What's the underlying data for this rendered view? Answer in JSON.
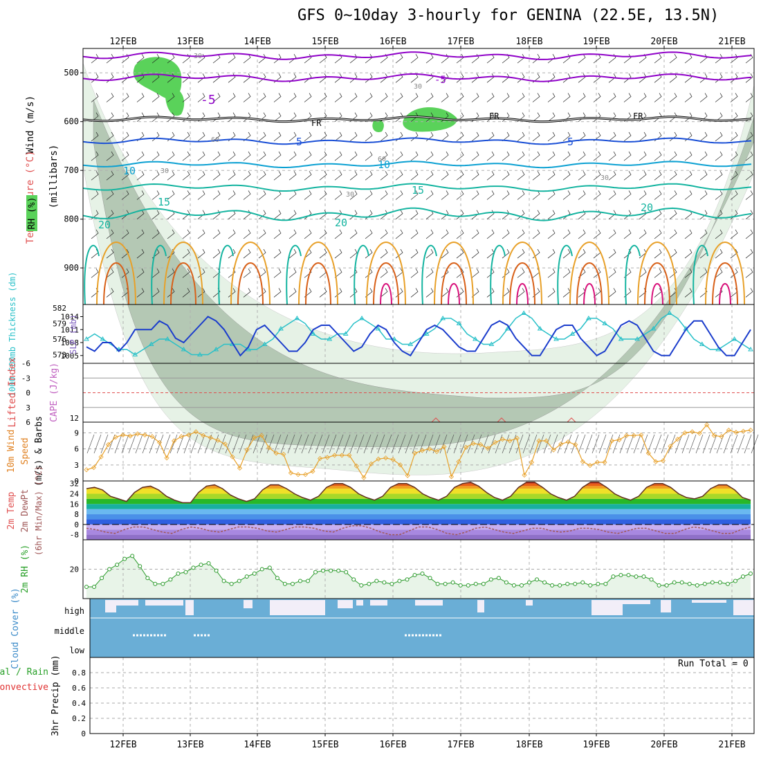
{
  "title": "GFS 0~10day 3-hourly for GENINA (22.5E, 13.5N)",
  "date_labels": [
    "12FEB",
    "13FEB",
    "14FEB",
    "15FEB",
    "16FEB",
    "17FEB",
    "18FEB",
    "19FEB",
    "20FEB",
    "21FEB"
  ],
  "run_total_label": "Run Total = 0",
  "colors": {
    "temp_purple": "#8f00c8",
    "temp_blue": "#1a4fd6",
    "temp_cyan": "#0aa0d2",
    "temp_teal": "#14b4a0",
    "temp_orange": "#e8a028",
    "temp_dark_orange": "#d86018",
    "temp_magenta": "#d8107a",
    "rh_light": "#e6f2e6",
    "rh_mid": "#b4c8b4",
    "rh_dark": "#2f9a2f",
    "rh_bright": "#5ad25a",
    "slp_blue": "#1a3ccc",
    "thickness_cyan": "#28c0c8",
    "wind_orange": "#e8a028",
    "cloud_blue": "#6aaed6",
    "cloud_clear": "#f2eef8",
    "rh2m_green": "#2a9a2a",
    "rh2m_fill": "#e8f4e8",
    "axis_grid": "#b0b0b0"
  },
  "chart_data": [
    {
      "type": "contour",
      "panel": "upper_air",
      "ylabel_wind": "Wind (m/s)",
      "ylabel_temp": "Temperature (°C)",
      "ylabel_rh": "RH (%)",
      "ylabel_units": "(millibars)",
      "y_ticks": [
        "500",
        "600",
        "700",
        "800",
        "900"
      ],
      "ylim": [
        450,
        975
      ],
      "contour_labels": [
        {
          "text": "-5",
          "value": -5
        },
        {
          "text": "5",
          "value": 5
        },
        {
          "text": "10",
          "value": 10
        },
        {
          "text": "15",
          "value": 15
        },
        {
          "text": "20",
          "value": 20
        },
        {
          "text": "FR",
          "value": 0
        },
        {
          "text": "30",
          "value": 30
        },
        {
          "text": "60",
          "value": 60
        }
      ],
      "isotherms_mb": {
        "minus5": 510,
        "freezing": 595,
        "plus5": 640,
        "plus10": 688,
        "plus15": 735,
        "plus20": 790
      }
    },
    {
      "type": "line",
      "panel": "slp_thickness",
      "ylabel_left": "1000-500mb Thickness (dm)",
      "ylabel_right": "SLP (mb)",
      "left_ticks": [
        "582",
        "579",
        "576",
        "573"
      ],
      "right_ticks": [
        "1014",
        "1011",
        "1008",
        "1005"
      ],
      "ylim_slp": [
        1004,
        1016
      ],
      "ylim_thickness": [
        572,
        582
      ],
      "series": [
        {
          "name": "SLP (mb)",
          "values": [
            1007,
            1006,
            1008,
            1008,
            1006,
            1008,
            1011,
            1011,
            1011,
            1013,
            1012,
            1009,
            1008,
            1010,
            1012,
            1014,
            1013,
            1011,
            1008,
            1005,
            1007,
            1011,
            1012,
            1010,
            1008,
            1006,
            1006,
            1008,
            1011,
            1012,
            1012,
            1010,
            1008,
            1006,
            1007,
            1010,
            1012,
            1011,
            1008,
            1006,
            1005,
            1008,
            1011,
            1012,
            1011,
            1009,
            1007,
            1006,
            1006,
            1009,
            1012,
            1013,
            1012,
            1009,
            1007,
            1005,
            1005,
            1008,
            1011,
            1012,
            1012,
            1009,
            1007,
            1005,
            1006,
            1009,
            1012,
            1013,
            1012,
            1009,
            1006,
            1005,
            1005,
            1008,
            1011,
            1013,
            1013,
            1010,
            1007,
            1005,
            1005,
            1008,
            1011
          ]
        },
        {
          "name": "1000-500mb Thickness (dm)",
          "values": [
            576,
            577,
            576,
            575,
            574,
            574,
            573,
            574,
            575,
            576,
            576,
            575,
            574,
            573,
            573,
            573,
            574,
            575,
            575,
            575,
            574,
            574,
            575,
            576,
            578,
            579,
            580,
            579,
            577,
            576,
            576,
            577,
            577,
            579,
            580,
            579,
            578,
            576,
            576,
            575,
            575,
            576,
            577,
            578,
            580,
            580,
            579,
            577,
            576,
            575,
            575,
            576,
            578,
            580,
            581,
            580,
            578,
            577,
            576,
            576,
            577,
            578,
            580,
            580,
            579,
            578,
            576,
            576,
            576,
            577,
            578,
            580,
            581,
            580,
            578,
            576,
            575,
            574,
            574,
            575,
            576,
            575,
            574
          ]
        }
      ]
    },
    {
      "type": "line",
      "panel": "stability",
      "ylabel_left": "Lifted Index",
      "ylabel_right": "CAPE (J/kg)",
      "left_ticks": [
        "-6",
        "-3",
        "0",
        "3",
        "6"
      ],
      "cape_tick": "12",
      "ylim": [
        -6,
        6
      ],
      "series": [
        {
          "name": "Lifted Index",
          "values": []
        },
        {
          "name": "CAPE (J/kg)",
          "values": []
        }
      ]
    },
    {
      "type": "line",
      "panel": "wind10m",
      "ylabel": "10m Wind Speed (m/s) & Barbs",
      "ylabel_lines": [
        "10m Wind",
        "Speed",
        "(m/s) & Barbs"
      ],
      "y_ticks": [
        "9",
        "6",
        "3",
        "0"
      ],
      "ylim": [
        0,
        11
      ],
      "series": [
        {
          "name": "10m Wind Speed",
          "values": [
            2.1,
            2.5,
            4.5,
            6.8,
            8.2,
            8.6,
            8.4,
            8.8,
            8.6,
            8.3,
            7.2,
            4.3,
            7.5,
            8.3,
            8.6,
            9.2,
            8.5,
            8.1,
            7.6,
            6.9,
            4.5,
            2.4,
            5.8,
            8.1,
            8.5,
            6.2,
            5.2,
            5.0,
            1.5,
            1.2,
            1.2,
            1.8,
            4.2,
            4.4,
            4.8,
            4.8,
            4.8,
            2.8,
            0.6,
            3.2,
            4.1,
            4.3,
            4.0,
            3.0,
            1.0,
            5.2,
            5.7,
            6.0,
            5.5,
            6.4,
            0.8,
            3.6,
            6.3,
            7.0,
            6.8,
            6.1,
            7.2,
            7.8,
            7.5,
            8.0,
            1.1,
            3.5,
            7.5,
            7.5,
            5.8,
            6.9,
            7.3,
            6.8,
            3.6,
            2.9,
            3.5,
            3.5,
            7.5,
            7.7,
            8.5,
            8.5,
            8.6,
            5.2,
            3.6,
            3.8,
            6.5,
            7.8,
            9.0,
            9.2,
            8.9,
            10.5,
            8.5,
            8.3,
            9.5,
            9.1,
            9.3,
            9.5
          ]
        }
      ]
    },
    {
      "type": "area",
      "panel": "temperature2m",
      "ylabel_lines": [
        "2m Temp",
        "2m DewPt",
        "(6hr Min/Max) (°C)"
      ],
      "y_ticks": [
        "32",
        "24",
        "16",
        "8",
        "0",
        "-8"
      ],
      "ylim": [
        -12,
        34
      ],
      "series": [
        {
          "name": "2m Temp",
          "values": [
            28,
            29,
            27,
            22,
            20,
            18,
            25,
            29,
            30,
            27,
            22,
            19,
            17,
            17,
            25,
            30,
            31,
            28,
            23,
            20,
            18,
            20,
            27,
            31,
            31,
            28,
            24,
            21,
            19,
            22,
            29,
            32,
            32,
            29,
            24,
            21,
            19,
            22,
            29,
            32,
            32,
            29,
            24,
            21,
            19,
            22,
            29,
            32,
            33,
            30,
            25,
            21,
            19,
            22,
            29,
            33,
            33,
            29,
            24,
            21,
            19,
            22,
            29,
            33,
            33,
            29,
            24,
            21,
            19,
            22,
            29,
            32,
            32,
            29,
            24,
            21,
            20,
            22,
            28,
            31,
            31,
            27,
            21,
            19
          ]
        },
        {
          "name": "2m DewPt",
          "values": [
            -3,
            -4,
            -6,
            -7,
            -4,
            -2,
            -2,
            -4,
            -6,
            -7,
            -4,
            -2,
            -3,
            -5,
            -6,
            -4,
            -2,
            -2,
            -3,
            -5,
            -6,
            -4,
            -2,
            -2,
            -3,
            -5,
            -6,
            -3,
            -1,
            -1,
            -3,
            -6,
            -8,
            -8,
            -5,
            -2,
            -2,
            -4,
            -7,
            -8,
            -6,
            -3,
            -2,
            -4,
            -6,
            -7,
            -5,
            -3,
            -3,
            -5,
            -6,
            -5,
            -3,
            -3,
            -4,
            -6,
            -7,
            -5,
            -3,
            -3,
            -5,
            -7,
            -7,
            -4,
            -2,
            -3,
            -5,
            -7,
            -7,
            -4,
            -2
          ]
        }
      ]
    },
    {
      "type": "area",
      "panel": "rh2m",
      "ylabel": "2m RH (%)",
      "y_ticks": [
        "20"
      ],
      "ylim": [
        0,
        40
      ],
      "series": [
        {
          "name": "2m RH",
          "values": [
            8,
            8,
            14,
            20,
            23,
            27,
            29,
            22,
            14,
            10,
            10,
            13,
            17,
            18,
            21,
            23,
            24,
            19,
            12,
            10,
            12,
            15,
            17,
            20,
            21,
            14,
            10,
            10,
            12,
            12,
            18,
            19,
            19,
            19,
            18,
            13,
            9,
            10,
            12,
            11,
            10,
            12,
            13,
            16,
            17,
            14,
            10,
            10,
            11,
            9,
            9,
            10,
            10,
            13,
            14,
            11,
            9,
            9,
            11,
            13,
            11,
            9,
            9,
            10,
            10,
            11,
            9,
            10,
            10,
            15,
            16,
            16,
            15,
            15,
            13,
            9,
            9,
            11,
            11,
            10,
            9,
            10,
            11,
            11,
            10,
            12,
            15,
            17
          ]
        }
      ]
    },
    {
      "type": "area",
      "panel": "cloud_cover",
      "ylabel": "Cloud Cover (%)",
      "categories": [
        "high",
        "middle",
        "low"
      ]
    },
    {
      "type": "bar",
      "panel": "precip",
      "ylabel": "3hr Precip (mm)",
      "legend_line1": "tal / Rain",
      "legend_line2": "Convective",
      "y_ticks": [
        "0.8",
        "0.6",
        "0.4",
        "0.2",
        "0"
      ],
      "ylim": [
        0,
        1.0
      ],
      "values": []
    }
  ]
}
